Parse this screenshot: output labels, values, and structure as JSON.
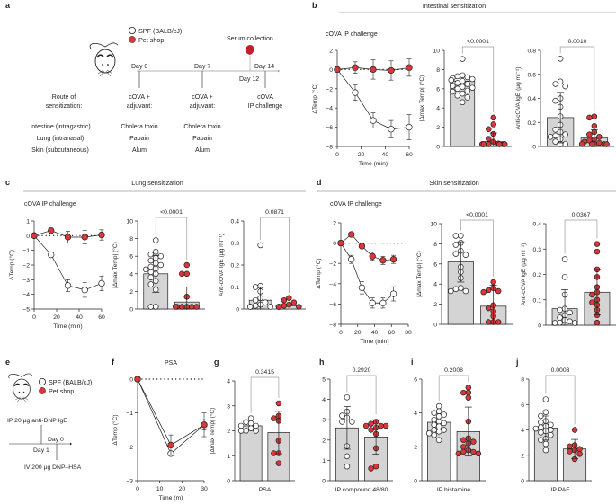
{
  "colors": {
    "spf_fill": "#ffffff",
    "petshop_fill": "#d9383a",
    "bar_fill": "#d4d4d4",
    "stroke": "#231f20",
    "header_line": "#9d9d9d"
  },
  "legend": {
    "spf": "SPF (BALB/cJ)",
    "petshop": "Pet shop"
  },
  "panel_a": {
    "label": "a",
    "serum": "Serum collection",
    "days": [
      "Day 0",
      "Day 7",
      "Day 12",
      "Day 14"
    ],
    "route_header": [
      "Route of",
      "sensitization:"
    ],
    "col1_header": [
      "cOVA +",
      "adjuvant:"
    ],
    "col2_header": [
      "cOVA +",
      "adjuvant:"
    ],
    "col3_header": [
      "cOVA",
      "IP challenge"
    ],
    "routes": [
      "Intestine (intragastric)",
      "Lung (intranasal)",
      "Skin (subcutaneous)"
    ],
    "adjuvants": [
      "Cholera toxin",
      "Papain",
      "Alum"
    ]
  },
  "panel_e": {
    "label": "e",
    "ip": "IP 20 µg anti-DNP IgE",
    "day0": "Day 0",
    "day1": "Day 1",
    "iv": "IV 200 µg DNP–HSA"
  },
  "chart_data": [
    {
      "id": "b-line",
      "panel": "b",
      "section_title": "Intestinal sensitization",
      "type": "line",
      "title": "cOVA IP challenge",
      "xlabel": "Time (min)",
      "ylabel": "ΔTemp (°C)",
      "xlim": [
        0,
        60
      ],
      "ylim": [
        -8,
        2
      ],
      "xticks": [
        0,
        20,
        40,
        60
      ],
      "yticks": [
        -8,
        -6,
        -4,
        -2,
        0,
        2
      ],
      "x": [
        0,
        15,
        30,
        45,
        60
      ],
      "series": [
        {
          "name": "SPF (BALB/cJ)",
          "values": [
            0,
            -2.4,
            -5.3,
            -6.2,
            -6.0
          ],
          "err": [
            0,
            0.8,
            0.8,
            0.9,
            1.3
          ]
        },
        {
          "name": "Pet shop",
          "values": [
            0,
            0.2,
            0.0,
            -0.1,
            0.2
          ],
          "err": [
            0,
            0.6,
            1.0,
            1.0,
            0.9
          ]
        }
      ]
    },
    {
      "id": "b-max",
      "panel": "b",
      "type": "bar",
      "ylabel": "|Δmax Temp| (°C)",
      "ylim": [
        0,
        10
      ],
      "yticks": [
        0,
        2,
        4,
        6,
        8,
        10
      ],
      "categories": [
        "SPF (BALB/cJ)",
        "Pet shop"
      ],
      "pvalue": "<0.0001",
      "series": [
        {
          "name": "SPF (BALB/cJ)",
          "mean": 6.8,
          "sd": 0.0,
          "points": [
            9.1,
            7.4,
            7.3,
            7.2,
            7.1,
            7.0,
            6.9,
            6.8,
            6.6,
            6.5,
            6.3,
            6.2,
            6.1,
            6.0,
            5.8,
            5.7,
            5.5,
            5.3,
            5.1,
            4.6
          ]
        },
        {
          "name": "Pet shop",
          "mean": 0.5,
          "sd": 0.9,
          "points": [
            3.0,
            2.3,
            1.8,
            1.3,
            0.8,
            0.5,
            0.3,
            0.1,
            0.05,
            0,
            0,
            0,
            0,
            0
          ]
        }
      ]
    },
    {
      "id": "b-ige",
      "panel": "b",
      "type": "bar",
      "ylabel": "Anti-cOVA IgE (µg ml⁻¹)",
      "ylim": [
        0,
        0.8
      ],
      "yticks": [
        0,
        0.2,
        0.4,
        0.6,
        0.8
      ],
      "categories": [
        "SPF (BALB/cJ)",
        "Pet shop"
      ],
      "pvalue": "0.0010",
      "series": [
        {
          "name": "SPF (BALB/cJ)",
          "mean": 0.24,
          "sd": 0.21,
          "points": [
            0.73,
            0.54,
            0.52,
            0.5,
            0.4,
            0.38,
            0.33,
            0.25,
            0.18,
            0.14,
            0.12,
            0.1,
            0.09,
            0.08,
            0.06,
            0.04,
            0.02,
            0.01
          ]
        },
        {
          "name": "Pet shop",
          "mean": 0.07,
          "sd": 0.07,
          "points": [
            0.25,
            0.24,
            0.17,
            0.12,
            0.1,
            0.08,
            0.06,
            0.05,
            0.04,
            0.03,
            0.02,
            0.02,
            0.01,
            0.01,
            0.0
          ]
        }
      ]
    },
    {
      "id": "c-line",
      "panel": "c",
      "section_title": "Lung sensitization",
      "type": "line",
      "title": "cOVA IP challenge",
      "xlabel": "Time (min)",
      "ylabel": "ΔTemp (°C)",
      "xlim": [
        0,
        60
      ],
      "ylim": [
        -5,
        1
      ],
      "xticks": [
        0,
        20,
        40,
        60
      ],
      "yticks": [
        -5,
        -4,
        -3,
        -2,
        -1,
        0,
        1
      ],
      "x": [
        0,
        15,
        30,
        45,
        60
      ],
      "series": [
        {
          "name": "SPF (BALB/cJ)",
          "values": [
            0,
            -1.3,
            -3.4,
            -3.7,
            -3.25
          ],
          "err": [
            0,
            0.1,
            0.4,
            0.5,
            0.5
          ]
        },
        {
          "name": "Pet shop",
          "values": [
            0,
            0.35,
            -0.1,
            -0.1,
            0.05
          ],
          "err": [
            0,
            0.0,
            0.4,
            0.45,
            0.35
          ]
        }
      ]
    },
    {
      "id": "c-max",
      "panel": "c",
      "type": "bar",
      "ylabel": "|Δmax Temp| (°C)",
      "ylim": [
        0,
        10
      ],
      "yticks": [
        0,
        2,
        4,
        6,
        8,
        10
      ],
      "categories": [
        "SPF (BALB/cJ)",
        "Pet shop"
      ],
      "pvalue": "<0.0001",
      "series": [
        {
          "name": "SPF (BALB/cJ)",
          "mean": 4.0,
          "sd": 2.1,
          "points": [
            7.8,
            6.5,
            6.2,
            6.0,
            5.8,
            5.5,
            5.2,
            5.0,
            4.8,
            4.6,
            4.5,
            4.2,
            4.0,
            3.6,
            3.2,
            2.8,
            2.2,
            0.2,
            0.0
          ]
        },
        {
          "name": "Pet shop",
          "mean": 0.8,
          "sd": 1.7,
          "points": [
            5.0,
            4.0,
            4.0,
            1.4,
            0.1,
            0.05,
            0,
            0,
            0,
            0
          ]
        }
      ]
    },
    {
      "id": "c-ige",
      "panel": "c",
      "type": "bar",
      "ylabel": "Anti-cOVA IgE (µg ml⁻¹)",
      "ylim": [
        0,
        0.4
      ],
      "yticks": [
        0,
        0.1,
        0.2,
        0.3,
        0.4
      ],
      "categories": [
        "SPF (BALB/cJ)",
        "Pet shop"
      ],
      "pvalue": "0.0871",
      "series": [
        {
          "name": "SPF (BALB/cJ)",
          "mean": 0.04,
          "sd": 0.06,
          "points": [
            0.29,
            0.105,
            0.1,
            0.08,
            0.05,
            0.04,
            0.03,
            0.02,
            0.015,
            0.01,
            0.005,
            0.0
          ]
        },
        {
          "name": "Pet shop",
          "mean": 0.015,
          "sd": 0.0,
          "points": [
            0.05,
            0.04,
            0.03,
            0.02,
            0.015,
            0.01,
            0.01,
            0.005,
            0.0,
            0.0
          ]
        }
      ]
    },
    {
      "id": "d-line",
      "panel": "d",
      "section_title": "Skin sensitization",
      "type": "line",
      "title": "cOVA IP challenge",
      "xlabel": "Time (min)",
      "ylabel": "ΔTemp (°C)",
      "xlim": [
        0,
        80
      ],
      "ylim": [
        -8,
        2
      ],
      "xticks": [
        0,
        20,
        40,
        60,
        80
      ],
      "yticks": [
        -8,
        -6,
        -4,
        -2,
        0,
        2
      ],
      "x": [
        0,
        12.5,
        25,
        37.5,
        50,
        62.5,
        75
      ],
      "series": [
        {
          "name": "SPF (BALB/cJ)",
          "values": [
            0,
            -1.6,
            -4.4,
            -5.9,
            -5.9,
            -5.0
          ],
          "x": [
            0,
            12.5,
            25,
            37.5,
            50,
            62.5
          ],
          "err": [
            0,
            0.4,
            0.6,
            0.5,
            0.5,
            0.7
          ]
        },
        {
          "name": "Pet shop",
          "values": [
            0,
            0.85,
            -0.3,
            -1.3,
            -1.7,
            -1.6
          ],
          "x": [
            0,
            12.5,
            25,
            37.5,
            50,
            62.5
          ],
          "err": [
            0,
            0.0,
            0.2,
            0.4,
            0.4,
            0.4
          ]
        }
      ]
    },
    {
      "id": "d-max",
      "panel": "d",
      "type": "bar",
      "ylabel": "|Δmax Temp| (°C)",
      "ylim": [
        0,
        10
      ],
      "yticks": [
        0,
        2,
        4,
        6,
        8,
        10
      ],
      "categories": [
        "SPF (BALB/cJ)",
        "Pet shop"
      ],
      "pvalue": "<0.0001",
      "series": [
        {
          "name": "SPF (BALB/cJ)",
          "mean": 6.2,
          "sd": 2.0,
          "points": [
            8.8,
            8.8,
            8.1,
            7.9,
            7.3,
            7.0,
            6.9,
            5.7,
            5.2,
            4.6,
            3.6,
            3.5,
            3.3,
            3.3
          ]
        },
        {
          "name": "Pet shop",
          "mean": 1.8,
          "sd": 2.1,
          "points": [
            4.2,
            3.6,
            3.4,
            3.3,
            3.2,
            1.9,
            1.6,
            1.3,
            0.8,
            0.0,
            0.0,
            0.0
          ]
        }
      ]
    },
    {
      "id": "d-ige",
      "panel": "d",
      "type": "bar",
      "ylabel": "Anti-cOVA IgE (µg ml⁻¹)",
      "ylim": [
        0,
        0.4
      ],
      "yticks": [
        0,
        0.1,
        0.2,
        0.3,
        0.4
      ],
      "categories": [
        "SPF (BALB/cJ)",
        "Pet shop"
      ],
      "pvalue": "0.0367",
      "series": [
        {
          "name": "SPF (BALB/cJ)",
          "mean": 0.065,
          "sd": 0.075,
          "points": [
            0.26,
            0.19,
            0.12,
            0.065,
            0.06,
            0.05,
            0.04,
            0.03,
            0.02,
            0.015,
            0.01,
            0.005,
            0.0
          ]
        },
        {
          "name": "Pet shop",
          "mean": 0.13,
          "sd": 0.09,
          "points": [
            0.32,
            0.29,
            0.22,
            0.19,
            0.15,
            0.13,
            0.12,
            0.1,
            0.09,
            0.08,
            0.06,
            0.04,
            0.01
          ]
        }
      ]
    },
    {
      "id": "f-line",
      "panel": "f",
      "type": "line",
      "title": "PSA",
      "xlabel": "Time (m)",
      "ylabel": "ΔTemp (°C)",
      "xlim": [
        0,
        30
      ],
      "ylim": [
        -3,
        0
      ],
      "xticks": [
        0,
        10,
        20,
        30
      ],
      "yticks": [
        -3,
        -2,
        -1,
        0
      ],
      "x": [
        0,
        15,
        30
      ],
      "series": [
        {
          "name": "SPF (BALB/cJ)",
          "values": [
            0,
            -2.2,
            -1.35
          ],
          "err": [
            0,
            0.0,
            0.35
          ]
        },
        {
          "name": "Pet shop",
          "values": [
            0,
            -1.95,
            -1.35
          ],
          "err": [
            0,
            0.3,
            0.15
          ]
        }
      ]
    },
    {
      "id": "g-max",
      "panel": "g",
      "type": "bar",
      "ylabel": "|Δmax Temp| (°C)",
      "xlabel": "PSA",
      "ylim": [
        0,
        4
      ],
      "yticks": [
        0,
        1,
        2,
        3,
        4
      ],
      "categories": [
        "SPF (BALB/cJ)",
        "Pet shop"
      ],
      "pvalue": "0.3415",
      "series": [
        {
          "name": "SPF (BALB/cJ)",
          "mean": 2.2,
          "sd": 0.0,
          "points": [
            2.5,
            2.35,
            2.3,
            2.2,
            2.2,
            2.1,
            2.0,
            2.0,
            2.0
          ]
        },
        {
          "name": "Pet shop",
          "mean": 1.93,
          "sd": 0.85,
          "points": [
            3.1,
            2.6,
            2.5,
            2.4,
            1.6,
            1.1,
            1.1,
            0.7
          ]
        }
      ]
    },
    {
      "id": "h-max",
      "panel": "h",
      "type": "bar",
      "xlabel": "IP compound 48/80",
      "ylim": [
        0,
        5
      ],
      "yticks": [
        0,
        1,
        2,
        3,
        4,
        5
      ],
      "categories": [
        "SPF (BALB/cJ)",
        "Pet shop"
      ],
      "pvalue": "0.2920",
      "series": [
        {
          "name": "SPF (BALB/cJ)",
          "mean": 2.6,
          "sd": 1.05,
          "points": [
            4.1,
            3.4,
            3.2,
            3.1,
            2.9,
            2.9,
            1.7,
            1.2,
            0.7
          ]
        },
        {
          "name": "Pet shop",
          "mean": 2.15,
          "sd": 0.85,
          "points": [
            2.9,
            2.8,
            2.7,
            2.7,
            2.7,
            2.6,
            2.5,
            2.3,
            1.6,
            0.7,
            0.6
          ]
        }
      ]
    },
    {
      "id": "i-max",
      "panel": "i",
      "type": "bar",
      "xlabel": "IP histamine",
      "ylim": [
        0,
        6
      ],
      "yticks": [
        0,
        2,
        4,
        6
      ],
      "categories": [
        "SPF (BALB/cJ)",
        "Pet shop"
      ],
      "pvalue": "0.2008",
      "series": [
        {
          "name": "SPF (BALB/cJ)",
          "mean": 3.45,
          "sd": 0.0,
          "points": [
            4.4,
            4.1,
            4.0,
            3.9,
            3.8,
            3.6,
            3.5,
            3.4,
            3.3,
            3.2,
            3.0,
            3.0,
            2.9,
            2.8,
            2.7,
            2.4
          ]
        },
        {
          "name": "Pet shop",
          "mean": 2.9,
          "sd": 1.45,
          "points": [
            5.5,
            5.2,
            5.2,
            4.9,
            3.5,
            2.5,
            2.4,
            2.3,
            2.2,
            2.0,
            1.8,
            1.7,
            1.7,
            1.6,
            1.6
          ]
        }
      ]
    },
    {
      "id": "j-max",
      "panel": "j",
      "type": "bar",
      "xlabel": "IP PAF",
      "ylim": [
        0,
        8
      ],
      "yticks": [
        0,
        2,
        4,
        6,
        8
      ],
      "categories": [
        "SPF (BALB/cJ)",
        "Pet shop"
      ],
      "pvalue": "0.0003",
      "series": [
        {
          "name": "SPF (BALB/cJ)",
          "mean": 4.15,
          "sd": 0.95,
          "points": [
            6.4,
            5.4,
            5.1,
            4.7,
            4.6,
            4.4,
            4.3,
            4.2,
            4.1,
            4.0,
            3.9,
            3.8,
            3.6,
            3.3,
            3.2,
            2.9,
            2.4
          ]
        },
        {
          "name": "Pet shop",
          "mean": 2.5,
          "sd": 0.75,
          "points": [
            4.0,
            2.8,
            2.7,
            2.5,
            2.4,
            2.3,
            2.1,
            1.7
          ]
        }
      ]
    }
  ]
}
